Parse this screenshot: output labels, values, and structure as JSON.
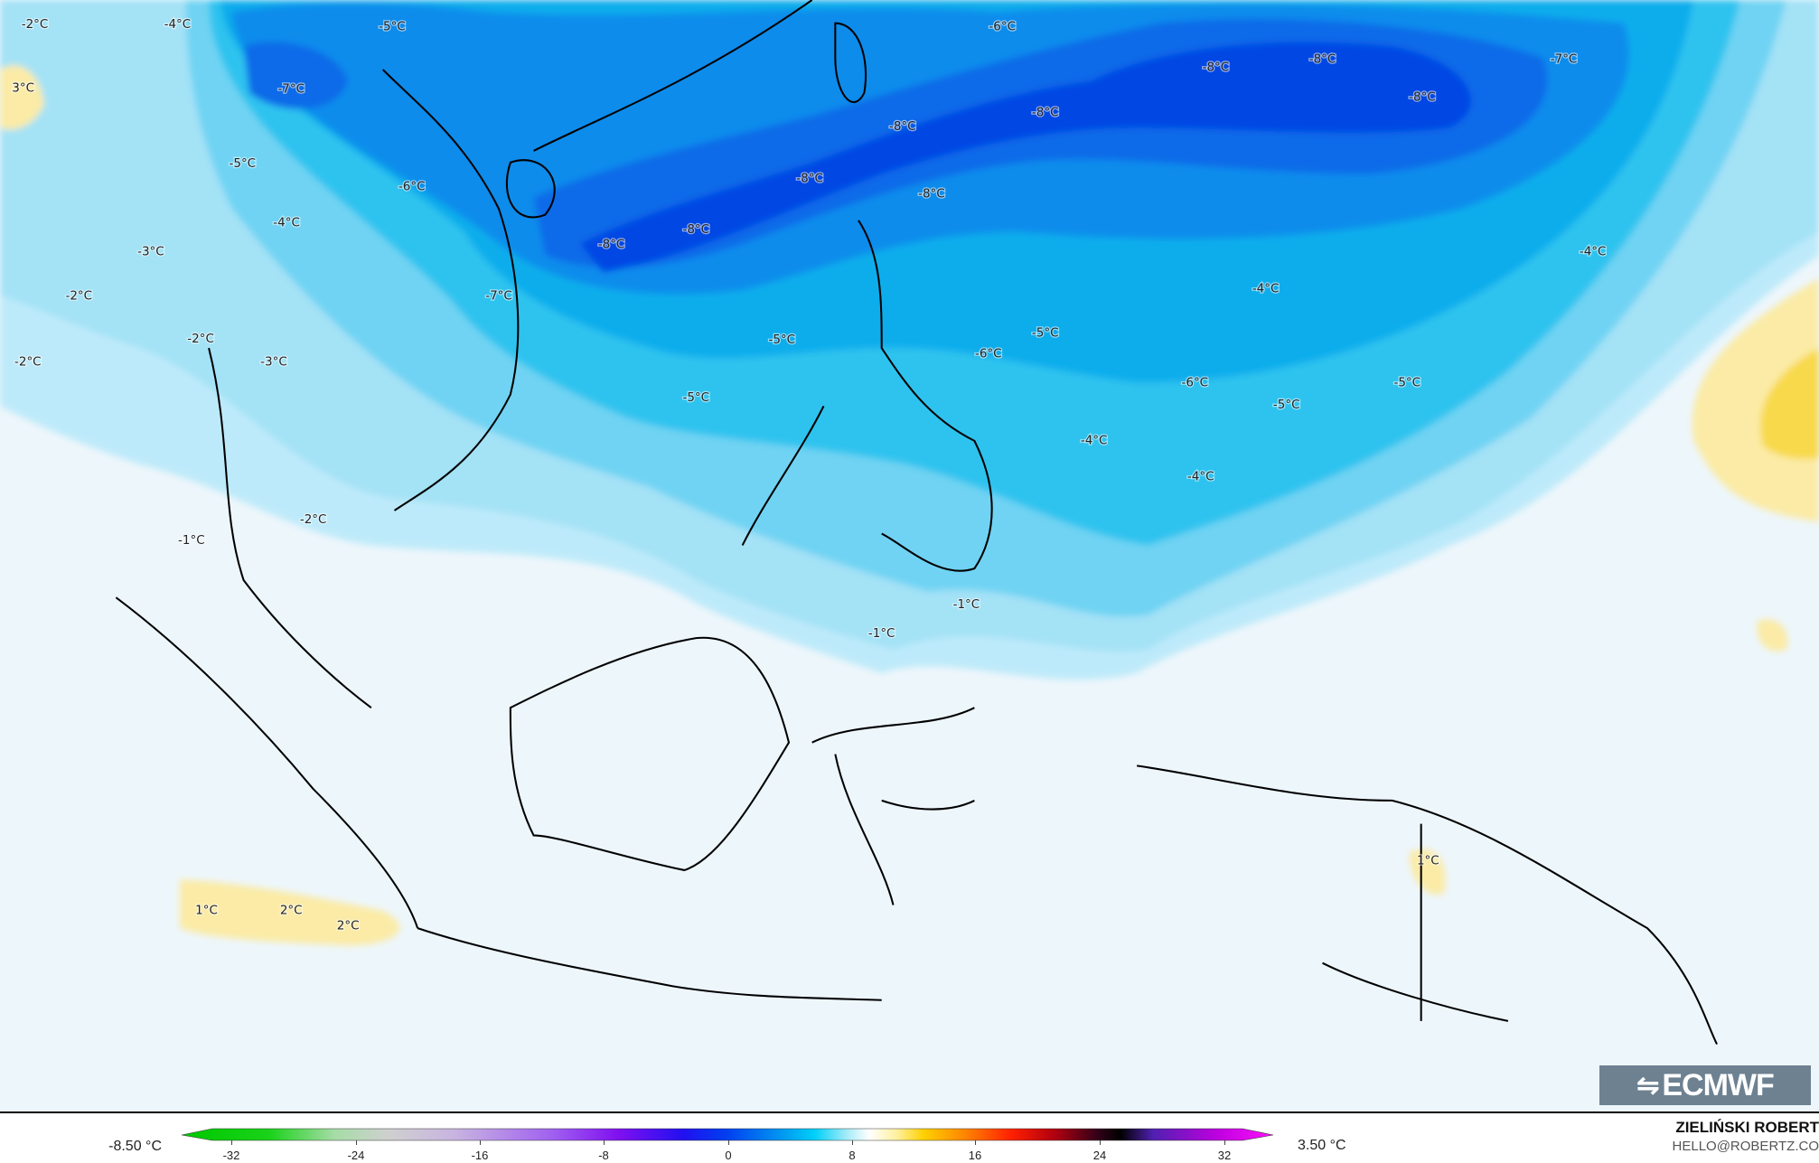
{
  "map": {
    "background_color": "#edf6fb",
    "contour_labels": [
      "-2°C",
      "-4°C",
      "-5°C",
      "-6°C",
      "-8°C",
      "-8°C",
      "-7°C",
      "-8°C",
      "3°C",
      "-7°C",
      "-8°C",
      "-8°C",
      "-5°C",
      "-6°C",
      "-8°C",
      "-8°C",
      "-4°C",
      "-3°C",
      "-8°C",
      "-8°C",
      "-4°C",
      "-7°C",
      "-2°C",
      "-4°C",
      "-2°C",
      "-2°C",
      "-3°C",
      "-5°C",
      "-5°C",
      "-6°C",
      "-6°C",
      "-5°C",
      "-5°C",
      "-5°C",
      "-4°C",
      "-4°C",
      "-2°C",
      "-1°C",
      "-1°C",
      "-1°C",
      "1°C",
      "2°C",
      "2°C",
      "1°C"
    ],
    "level_colors": {
      "m1": "#bdeafa",
      "m2": "#a4e2f6",
      "m3": "#6fd3f3",
      "m4": "#2ec3ef",
      "m5": "#0fadec",
      "m6": "#0a8cec",
      "m7": "#0a6ae8",
      "m8": "#0646e4",
      "p1": "#fbeba6",
      "p2": "#f8d94c"
    }
  },
  "colorbar": {
    "min_label": "-8.50 °C",
    "max_label": "3.50 °C",
    "ticks": [
      "-32",
      "-24",
      "-16",
      "-8",
      "0",
      "8",
      "16",
      "24",
      "32"
    ]
  },
  "logo": {
    "text": "ECMWF"
  },
  "credit": {
    "name": "ZIELIŃSKI ROBERT",
    "email": "HELLO@ROBERTZ.CO"
  }
}
